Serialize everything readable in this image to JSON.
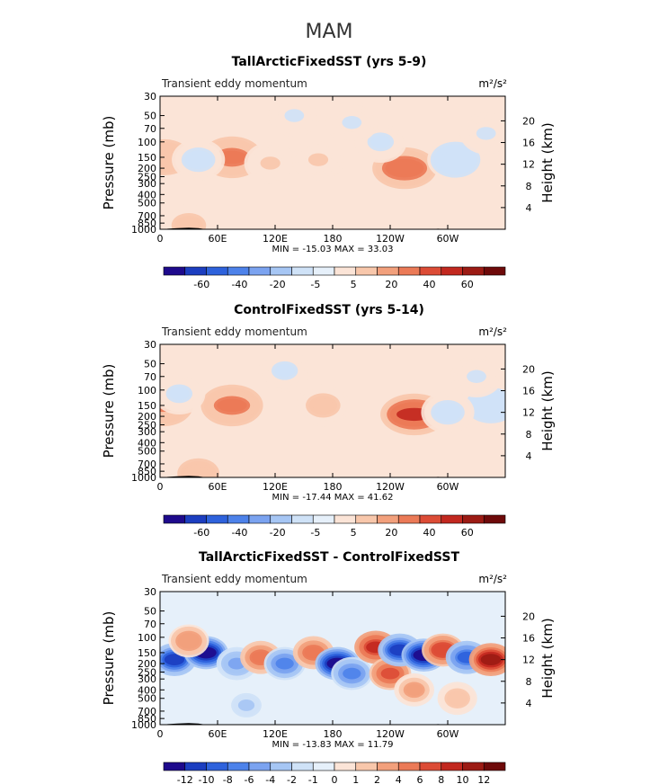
{
  "figure": {
    "season_title": "MAM",
    "x_ticks": [
      "0",
      "60E",
      "120E",
      "180",
      "120W",
      "60W"
    ],
    "x_tick_lons": [
      0,
      60,
      120,
      180,
      240,
      300
    ],
    "x_range": [
      0,
      360
    ],
    "pressure_ticks": [
      "30",
      "50",
      "70",
      "100",
      "150",
      "200",
      "250",
      "300",
      "400",
      "500",
      "700",
      "850",
      "1000"
    ],
    "pressure_values": [
      30,
      50,
      70,
      100,
      150,
      200,
      250,
      300,
      400,
      500,
      700,
      850,
      1000
    ],
    "height_ticks": [
      "4",
      "8",
      "12",
      "16",
      "20"
    ],
    "height_values": [
      4,
      8,
      12,
      16,
      20
    ],
    "y_label_left": "Pressure (mb)",
    "y_label_right": "Height (km)",
    "y_scale": "log pressure, reversed",
    "units": "m²/s²",
    "field_label": "Transient eddy momentum"
  },
  "chart_data": [
    {
      "type": "heatmap",
      "title": "TallArcticFixedSST (yrs 5-9)",
      "subtitle_left": "Transient eddy momentum",
      "units": "m²/s²",
      "stats_text": "MIN = -15.03   MAX =  33.03",
      "min": -15.03,
      "max": 33.03,
      "colorbar_levels": [
        "-60",
        "-40",
        "-20",
        "-5",
        "5",
        "20",
        "40",
        "60"
      ],
      "colorbar_colors": [
        "#1e0a8c",
        "#1c3ec0",
        "#2e62dc",
        "#4d82ea",
        "#7ba3f0",
        "#a6c6f4",
        "#cfe2f7",
        "#e6f0fa",
        "#fbe4d7",
        "#f8c7ab",
        "#f2a07c",
        "#eb7a57",
        "#dc4c36",
        "#c2281f",
        "#9c1b14",
        "#6e0a0a"
      ],
      "blobs": [
        {
          "lon": 5,
          "p": 150,
          "v": 20
        },
        {
          "lon": 75,
          "p": 150,
          "v": 26
        },
        {
          "lon": 115,
          "p": 175,
          "v": 6
        },
        {
          "lon": 165,
          "p": 160,
          "v": 6
        },
        {
          "lon": 255,
          "p": 200,
          "v": 33
        },
        {
          "lon": 308,
          "p": 160,
          "v": -15
        },
        {
          "lon": 40,
          "p": 160,
          "v": -8
        },
        {
          "lon": 230,
          "p": 100,
          "v": -6
        },
        {
          "lon": 140,
          "p": 50,
          "v": -5
        },
        {
          "lon": 340,
          "p": 80,
          "v": -5
        },
        {
          "lon": 200,
          "p": 60,
          "v": -5
        },
        {
          "lon": 30,
          "p": 900,
          "v": 10
        }
      ]
    },
    {
      "type": "heatmap",
      "title": "ControlFixedSST (yrs 5-14)",
      "subtitle_left": "Transient eddy momentum",
      "units": "m²/s²",
      "stats_text": "MIN = -17.44   MAX =  41.62",
      "min": -17.44,
      "max": 41.62,
      "colorbar_levels": [
        "-60",
        "-40",
        "-20",
        "-5",
        "5",
        "20",
        "40",
        "60"
      ],
      "colorbar_colors": [
        "#1e0a8c",
        "#1c3ec0",
        "#2e62dc",
        "#4d82ea",
        "#7ba3f0",
        "#a6c6f4",
        "#cfe2f7",
        "#e6f0fa",
        "#fbe4d7",
        "#f8c7ab",
        "#f2a07c",
        "#eb7a57",
        "#dc4c36",
        "#c2281f",
        "#9c1b14",
        "#6e0a0a"
      ],
      "blobs": [
        {
          "lon": 3,
          "p": 150,
          "v": 24
        },
        {
          "lon": 75,
          "p": 150,
          "v": 28
        },
        {
          "lon": 170,
          "p": 150,
          "v": 10
        },
        {
          "lon": 265,
          "p": 190,
          "v": 41
        },
        {
          "lon": 20,
          "p": 110,
          "v": -6
        },
        {
          "lon": 345,
          "p": 150,
          "v": -17
        },
        {
          "lon": 300,
          "p": 180,
          "v": -8
        },
        {
          "lon": 130,
          "p": 60,
          "v": -6
        },
        {
          "lon": 330,
          "p": 70,
          "v": -5
        },
        {
          "lon": 40,
          "p": 900,
          "v": 12
        }
      ]
    },
    {
      "type": "heatmap",
      "title": "TallArcticFixedSST - ControlFixedSST",
      "subtitle_left": "Transient eddy momentum",
      "units": "m²/s²",
      "stats_text": "MIN = -13.83   MAX =  11.79",
      "min": -13.83,
      "max": 11.79,
      "colorbar_levels": [
        "-12",
        "-10",
        "-8",
        "-6",
        "-4",
        "-2",
        "-1",
        "0",
        "1",
        "2",
        "4",
        "6",
        "8",
        "10",
        "12"
      ],
      "colorbar_colors": [
        "#1e0a8c",
        "#1c3ec0",
        "#2e62dc",
        "#4d82ea",
        "#7ba3f0",
        "#a6c6f4",
        "#cfe2f7",
        "#e6f0fa",
        "#fbe4d7",
        "#f8c7ab",
        "#f2a07c",
        "#eb7a57",
        "#dc4c36",
        "#c2281f",
        "#9c1b14",
        "#6e0a0a"
      ],
      "blobs": [
        {
          "lon": 15,
          "p": 180,
          "v": -10
        },
        {
          "lon": 48,
          "p": 150,
          "v": -12
        },
        {
          "lon": 80,
          "p": 200,
          "v": -4
        },
        {
          "lon": 105,
          "p": 170,
          "v": 5
        },
        {
          "lon": 130,
          "p": 200,
          "v": -6
        },
        {
          "lon": 160,
          "p": 150,
          "v": 5
        },
        {
          "lon": 185,
          "p": 200,
          "v": -13
        },
        {
          "lon": 200,
          "p": 260,
          "v": -6
        },
        {
          "lon": 225,
          "p": 130,
          "v": 9
        },
        {
          "lon": 240,
          "p": 260,
          "v": 7
        },
        {
          "lon": 250,
          "p": 140,
          "v": -11
        },
        {
          "lon": 275,
          "p": 160,
          "v": -13
        },
        {
          "lon": 295,
          "p": 140,
          "v": 8
        },
        {
          "lon": 320,
          "p": 170,
          "v": -8
        },
        {
          "lon": 345,
          "p": 180,
          "v": 11
        },
        {
          "lon": 30,
          "p": 110,
          "v": 4
        },
        {
          "lon": 265,
          "p": 400,
          "v": 3
        },
        {
          "lon": 90,
          "p": 600,
          "v": -2
        },
        {
          "lon": 310,
          "p": 500,
          "v": 2
        }
      ]
    }
  ]
}
